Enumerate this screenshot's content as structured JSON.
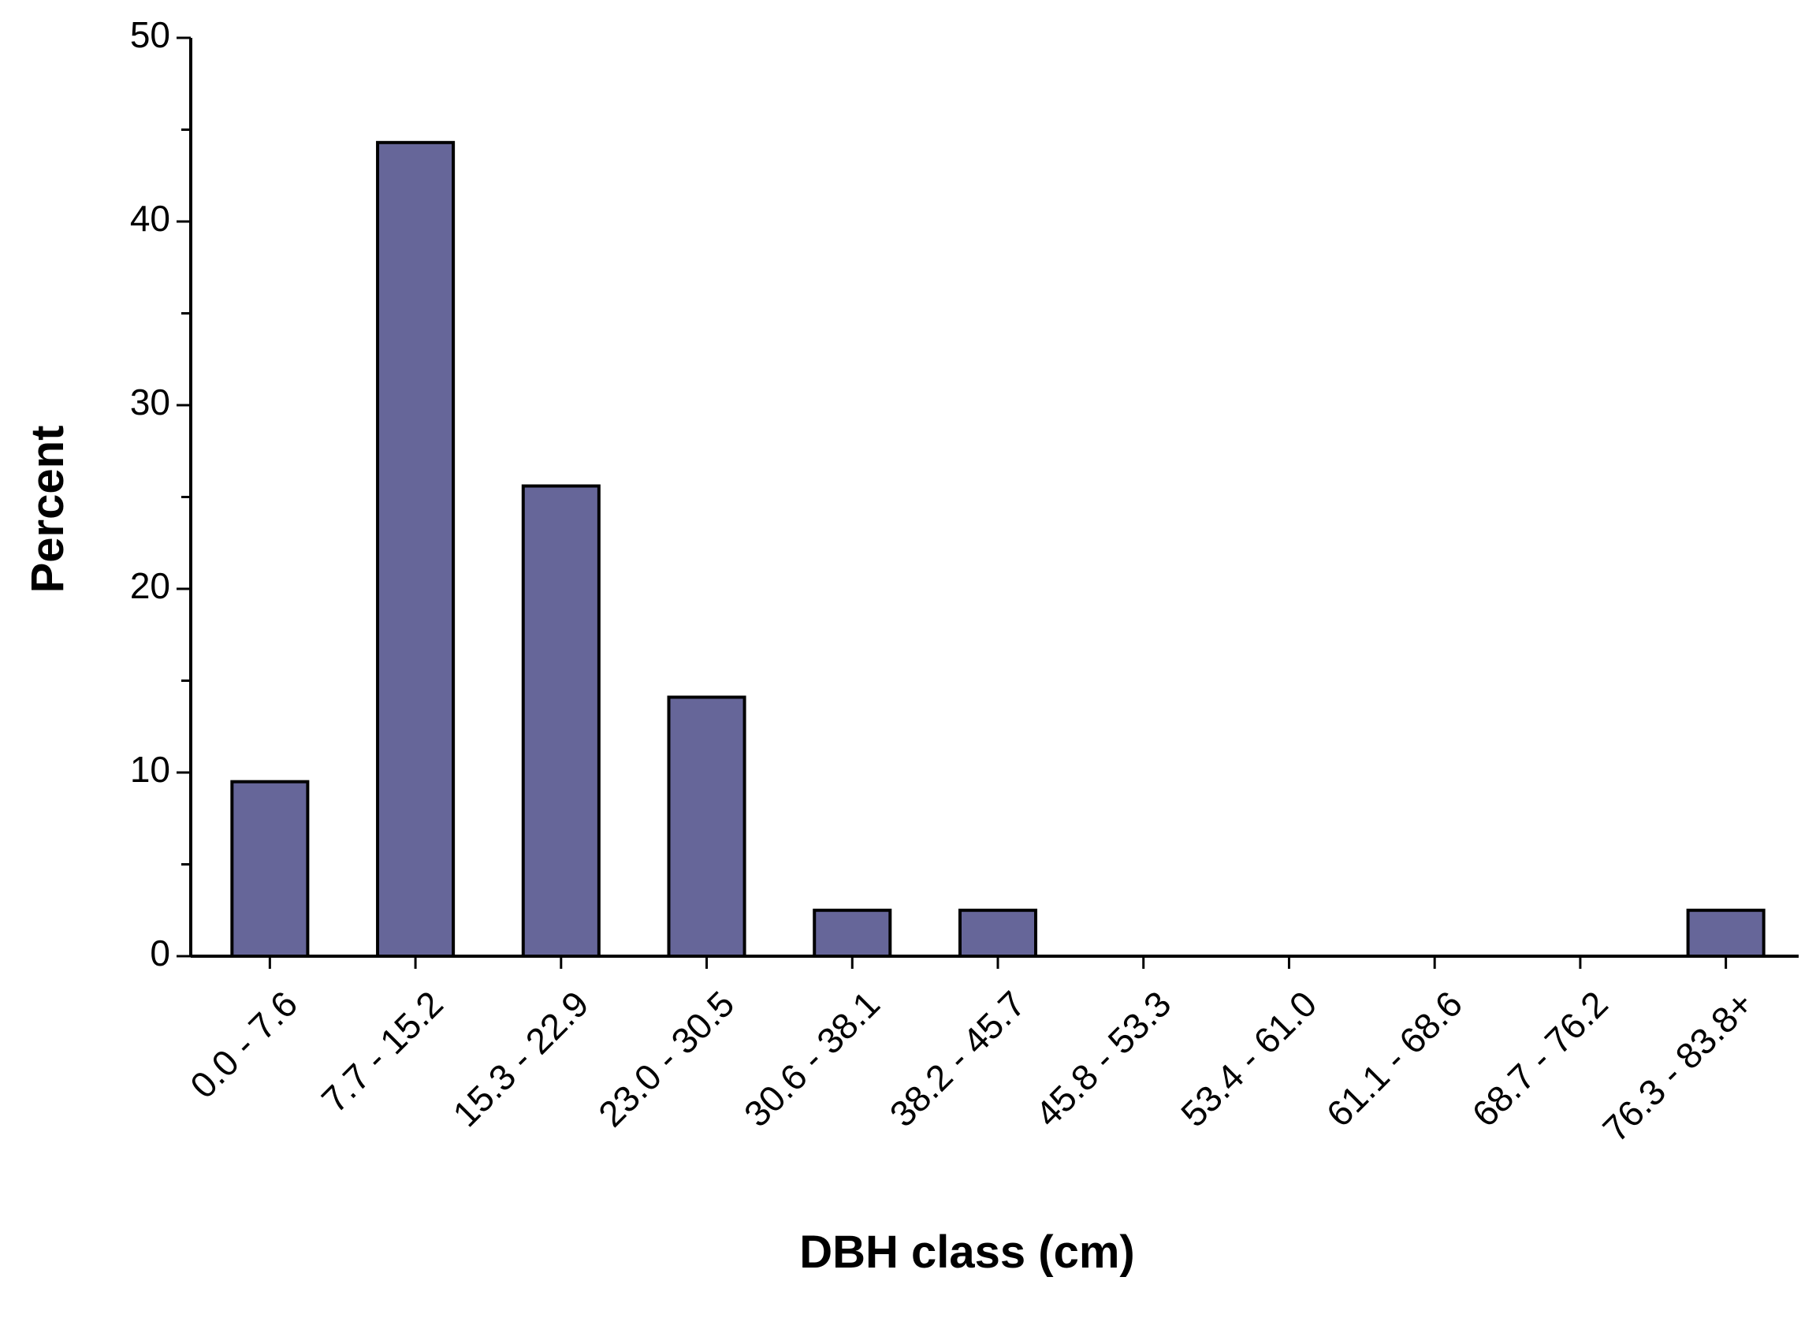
{
  "chart_data": {
    "type": "bar",
    "x_label": "DBH class (cm)",
    "y_label": "Percent",
    "categories": [
      "0.0 - 7.6",
      "7.7 - 15.2",
      "15.3 - 22.9",
      "23.0 - 30.5",
      "30.6 - 38.1",
      "38.2 - 45.7",
      "45.8 - 53.3",
      "53.4 - 61.0",
      "61.1 - 68.6",
      "68.7 - 76.2",
      "76.3 - 83.8+"
    ],
    "values": [
      9.5,
      44.3,
      25.6,
      14.1,
      2.5,
      2.5,
      0,
      0,
      0,
      0,
      2.5
    ],
    "color": "#666699",
    "ylim": [
      0,
      50
    ],
    "yticks": [
      0,
      10,
      20,
      30,
      40,
      50
    ],
    "minor_yticks": [
      5,
      15,
      25,
      35,
      45
    ],
    "grid": false
  }
}
